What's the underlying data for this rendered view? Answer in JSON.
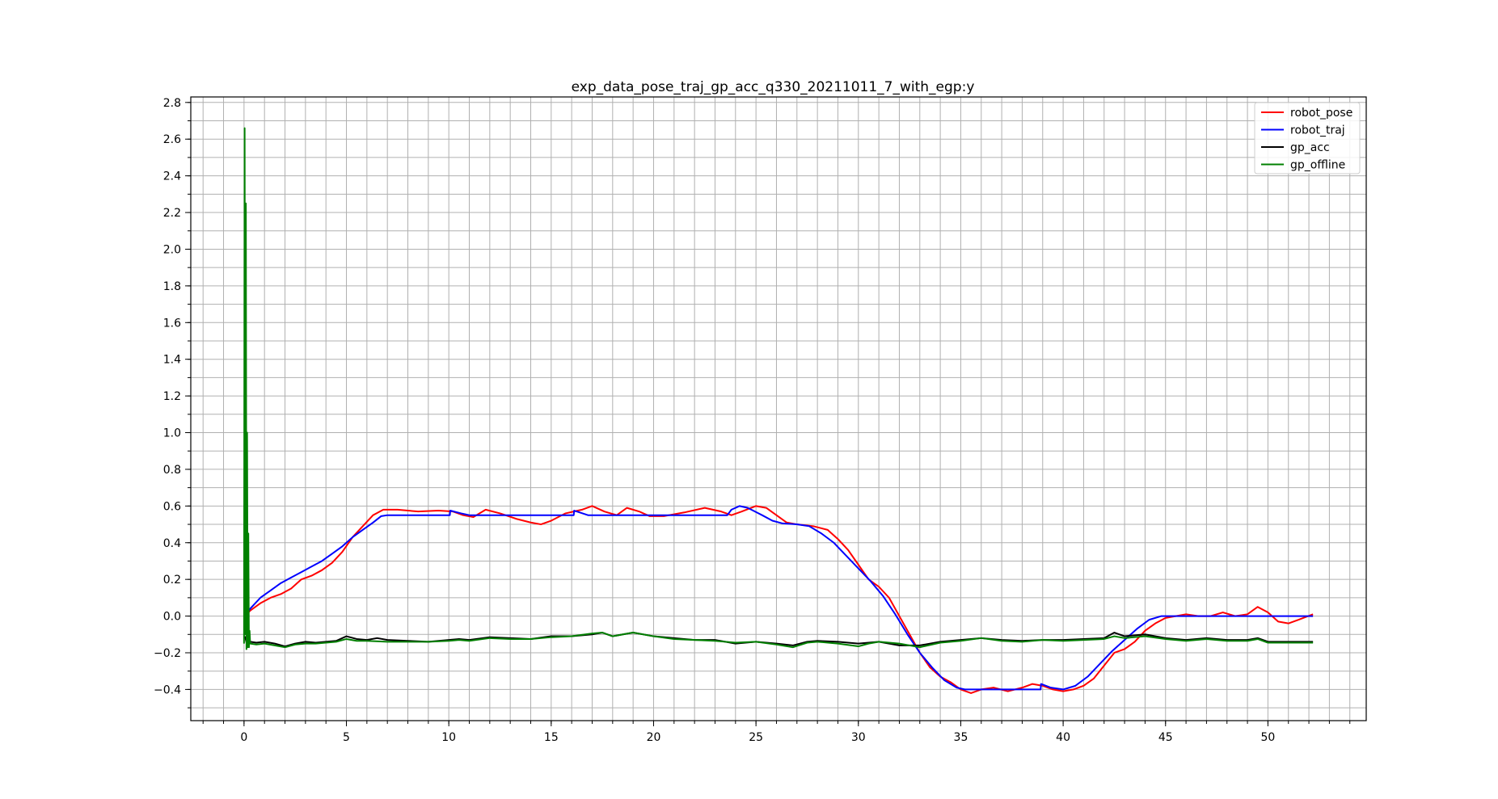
{
  "chart_data": {
    "type": "line",
    "title": "exp_data_pose_traj_gp_acc_q330_20211011_7_with_egp:y",
    "xlabel": "",
    "ylabel": "",
    "xlim": [
      -2.6,
      54.8
    ],
    "ylim": [
      -0.57,
      2.83
    ],
    "x_ticks": [
      0,
      5,
      10,
      15,
      20,
      25,
      30,
      35,
      40,
      45,
      50
    ],
    "x_tick_labels": [
      "0",
      "5",
      "10",
      "15",
      "20",
      "25",
      "30",
      "35",
      "40",
      "45",
      "50"
    ],
    "x_minor_step": 1,
    "y_ticks": [
      -0.4,
      -0.2,
      0.0,
      0.2,
      0.4,
      0.6,
      0.8,
      1.0,
      1.2,
      1.4,
      1.6,
      1.8,
      2.0,
      2.2,
      2.4,
      2.6,
      2.8
    ],
    "y_tick_labels": [
      "−0.4",
      "−0.2",
      "0.0",
      "0.2",
      "0.4",
      "0.6",
      "0.8",
      "1.0",
      "1.2",
      "1.4",
      "1.6",
      "1.8",
      "2.0",
      "2.2",
      "2.4",
      "2.6",
      "2.8"
    ],
    "y_minor_step": 0.1,
    "grid": true,
    "legend_position": "top-right",
    "series": [
      {
        "name": "robot_pose",
        "color": "#ff0000",
        "points": [
          [
            0.05,
            0.0
          ],
          [
            0.3,
            0.03
          ],
          [
            0.8,
            0.07
          ],
          [
            1.3,
            0.1
          ],
          [
            1.8,
            0.12
          ],
          [
            2.3,
            0.15
          ],
          [
            2.8,
            0.2
          ],
          [
            3.3,
            0.22
          ],
          [
            3.8,
            0.25
          ],
          [
            4.3,
            0.29
          ],
          [
            4.8,
            0.35
          ],
          [
            5.3,
            0.43
          ],
          [
            5.8,
            0.49
          ],
          [
            6.3,
            0.55
          ],
          [
            6.8,
            0.58
          ],
          [
            7.5,
            0.58
          ],
          [
            8.5,
            0.57
          ],
          [
            9.5,
            0.575
          ],
          [
            10.2,
            0.57
          ],
          [
            10.7,
            0.55
          ],
          [
            11.2,
            0.54
          ],
          [
            11.8,
            0.58
          ],
          [
            12.5,
            0.56
          ],
          [
            13.3,
            0.53
          ],
          [
            14.0,
            0.51
          ],
          [
            14.5,
            0.5
          ],
          [
            15.0,
            0.52
          ],
          [
            15.7,
            0.56
          ],
          [
            16.5,
            0.58
          ],
          [
            17.0,
            0.6
          ],
          [
            17.6,
            0.57
          ],
          [
            18.2,
            0.55
          ],
          [
            18.7,
            0.59
          ],
          [
            19.3,
            0.57
          ],
          [
            19.8,
            0.545
          ],
          [
            20.5,
            0.545
          ],
          [
            21.5,
            0.565
          ],
          [
            22.5,
            0.59
          ],
          [
            23.3,
            0.57
          ],
          [
            23.8,
            0.55
          ],
          [
            24.3,
            0.57
          ],
          [
            25.0,
            0.6
          ],
          [
            25.5,
            0.59
          ],
          [
            26.0,
            0.55
          ],
          [
            26.5,
            0.51
          ],
          [
            27.0,
            0.5
          ],
          [
            27.8,
            0.49
          ],
          [
            28.5,
            0.47
          ],
          [
            29.0,
            0.42
          ],
          [
            29.5,
            0.36
          ],
          [
            30.0,
            0.28
          ],
          [
            30.5,
            0.2
          ],
          [
            31.0,
            0.16
          ],
          [
            31.5,
            0.1
          ],
          [
            32.0,
            0.0
          ],
          [
            32.5,
            -0.1
          ],
          [
            33.0,
            -0.2
          ],
          [
            33.5,
            -0.28
          ],
          [
            34.0,
            -0.33
          ],
          [
            34.5,
            -0.36
          ],
          [
            35.0,
            -0.4
          ],
          [
            35.5,
            -0.42
          ],
          [
            36.0,
            -0.4
          ],
          [
            36.6,
            -0.39
          ],
          [
            37.3,
            -0.41
          ],
          [
            38.0,
            -0.39
          ],
          [
            38.5,
            -0.37
          ],
          [
            39.0,
            -0.38
          ],
          [
            39.5,
            -0.4
          ],
          [
            40.0,
            -0.41
          ],
          [
            40.5,
            -0.4
          ],
          [
            41.0,
            -0.38
          ],
          [
            41.5,
            -0.34
          ],
          [
            42.0,
            -0.27
          ],
          [
            42.5,
            -0.2
          ],
          [
            43.0,
            -0.18
          ],
          [
            43.5,
            -0.14
          ],
          [
            44.0,
            -0.08
          ],
          [
            44.5,
            -0.04
          ],
          [
            45.0,
            -0.01
          ],
          [
            45.5,
            0.0
          ],
          [
            46.0,
            0.01
          ],
          [
            46.6,
            0.0
          ],
          [
            47.2,
            0.0
          ],
          [
            47.8,
            0.02
          ],
          [
            48.4,
            0.0
          ],
          [
            49.0,
            0.01
          ],
          [
            49.5,
            0.05
          ],
          [
            50.0,
            0.02
          ],
          [
            50.5,
            -0.03
          ],
          [
            51.0,
            -0.04
          ],
          [
            51.5,
            -0.02
          ],
          [
            52.2,
            0.01
          ]
        ]
      },
      {
        "name": "robot_traj",
        "color": "#0000ff",
        "points": [
          [
            0.05,
            0.0
          ],
          [
            0.3,
            0.04
          ],
          [
            0.8,
            0.1
          ],
          [
            1.3,
            0.14
          ],
          [
            1.8,
            0.18
          ],
          [
            2.3,
            0.21
          ],
          [
            2.8,
            0.24
          ],
          [
            3.3,
            0.27
          ],
          [
            3.8,
            0.3
          ],
          [
            4.3,
            0.34
          ],
          [
            4.8,
            0.38
          ],
          [
            5.3,
            0.43
          ],
          [
            5.8,
            0.47
          ],
          [
            6.3,
            0.51
          ],
          [
            6.7,
            0.545
          ],
          [
            7.0,
            0.55
          ],
          [
            10.05,
            0.55
          ],
          [
            10.07,
            0.575
          ],
          [
            10.6,
            0.56
          ],
          [
            11.0,
            0.55
          ],
          [
            16.1,
            0.55
          ],
          [
            16.12,
            0.575
          ],
          [
            16.8,
            0.55
          ],
          [
            23.6,
            0.55
          ],
          [
            23.8,
            0.58
          ],
          [
            24.2,
            0.6
          ],
          [
            24.6,
            0.59
          ],
          [
            25.3,
            0.55
          ],
          [
            25.8,
            0.52
          ],
          [
            26.3,
            0.505
          ],
          [
            27.0,
            0.5
          ],
          [
            27.6,
            0.49
          ],
          [
            28.2,
            0.45
          ],
          [
            28.8,
            0.4
          ],
          [
            29.4,
            0.33
          ],
          [
            30.0,
            0.26
          ],
          [
            30.6,
            0.19
          ],
          [
            31.2,
            0.11
          ],
          [
            31.8,
            0.01
          ],
          [
            32.4,
            -0.1
          ],
          [
            33.0,
            -0.2
          ],
          [
            33.6,
            -0.28
          ],
          [
            34.2,
            -0.35
          ],
          [
            34.8,
            -0.39
          ],
          [
            35.2,
            -0.4
          ],
          [
            38.9,
            -0.4
          ],
          [
            38.92,
            -0.37
          ],
          [
            39.4,
            -0.39
          ],
          [
            40.0,
            -0.4
          ],
          [
            40.6,
            -0.38
          ],
          [
            41.2,
            -0.33
          ],
          [
            41.8,
            -0.26
          ],
          [
            42.4,
            -0.19
          ],
          [
            43.0,
            -0.13
          ],
          [
            43.6,
            -0.07
          ],
          [
            44.2,
            -0.02
          ],
          [
            44.8,
            0.0
          ],
          [
            45.2,
            0.0
          ],
          [
            52.2,
            0.0
          ]
        ]
      },
      {
        "name": "gp_acc",
        "color": "#000000",
        "points": [
          [
            0.05,
            -0.11
          ],
          [
            0.15,
            -0.16
          ],
          [
            0.3,
            -0.14
          ],
          [
            0.6,
            -0.145
          ],
          [
            1.0,
            -0.14
          ],
          [
            1.5,
            -0.15
          ],
          [
            2.0,
            -0.165
          ],
          [
            2.5,
            -0.15
          ],
          [
            3.0,
            -0.14
          ],
          [
            3.5,
            -0.145
          ],
          [
            4.0,
            -0.14
          ],
          [
            4.5,
            -0.135
          ],
          [
            5.0,
            -0.11
          ],
          [
            5.5,
            -0.125
          ],
          [
            6.0,
            -0.13
          ],
          [
            6.5,
            -0.12
          ],
          [
            7.0,
            -0.13
          ],
          [
            8.0,
            -0.135
          ],
          [
            9.0,
            -0.14
          ],
          [
            10.0,
            -0.13
          ],
          [
            10.5,
            -0.125
          ],
          [
            11.0,
            -0.13
          ],
          [
            12.0,
            -0.115
          ],
          [
            13.0,
            -0.12
          ],
          [
            14.0,
            -0.125
          ],
          [
            15.0,
            -0.11
          ],
          [
            16.0,
            -0.11
          ],
          [
            17.0,
            -0.1
          ],
          [
            17.5,
            -0.09
          ],
          [
            18.0,
            -0.11
          ],
          [
            18.5,
            -0.1
          ],
          [
            19.0,
            -0.09
          ],
          [
            20.0,
            -0.11
          ],
          [
            21.0,
            -0.12
          ],
          [
            22.0,
            -0.13
          ],
          [
            23.0,
            -0.13
          ],
          [
            24.0,
            -0.15
          ],
          [
            25.0,
            -0.14
          ],
          [
            26.0,
            -0.15
          ],
          [
            26.8,
            -0.16
          ],
          [
            27.5,
            -0.14
          ],
          [
            28.0,
            -0.135
          ],
          [
            29.0,
            -0.14
          ],
          [
            30.0,
            -0.15
          ],
          [
            30.5,
            -0.145
          ],
          [
            31.0,
            -0.14
          ],
          [
            32.0,
            -0.16
          ],
          [
            33.0,
            -0.16
          ],
          [
            34.0,
            -0.14
          ],
          [
            35.0,
            -0.13
          ],
          [
            36.0,
            -0.12
          ],
          [
            37.0,
            -0.13
          ],
          [
            38.0,
            -0.135
          ],
          [
            39.0,
            -0.13
          ],
          [
            40.0,
            -0.13
          ],
          [
            41.0,
            -0.125
          ],
          [
            42.0,
            -0.12
          ],
          [
            42.5,
            -0.09
          ],
          [
            43.0,
            -0.11
          ],
          [
            44.0,
            -0.1
          ],
          [
            45.0,
            -0.12
          ],
          [
            46.0,
            -0.13
          ],
          [
            47.0,
            -0.12
          ],
          [
            48.0,
            -0.13
          ],
          [
            49.0,
            -0.13
          ],
          [
            49.5,
            -0.12
          ],
          [
            50.0,
            -0.14
          ],
          [
            51.0,
            -0.14
          ],
          [
            52.2,
            -0.14
          ]
        ]
      },
      {
        "name": "gp_offline",
        "color": "#008000",
        "points": [
          [
            0.0,
            -0.15
          ],
          [
            0.03,
            2.66
          ],
          [
            0.06,
            -0.1
          ],
          [
            0.09,
            2.25
          ],
          [
            0.12,
            -0.18
          ],
          [
            0.15,
            1.0
          ],
          [
            0.18,
            -0.17
          ],
          [
            0.21,
            0.45
          ],
          [
            0.24,
            -0.17
          ],
          [
            0.27,
            -0.08
          ],
          [
            0.3,
            -0.15
          ],
          [
            0.6,
            -0.155
          ],
          [
            1.0,
            -0.15
          ],
          [
            1.5,
            -0.16
          ],
          [
            2.0,
            -0.17
          ],
          [
            2.5,
            -0.155
          ],
          [
            3.0,
            -0.15
          ],
          [
            3.5,
            -0.15
          ],
          [
            4.0,
            -0.145
          ],
          [
            4.5,
            -0.14
          ],
          [
            5.0,
            -0.125
          ],
          [
            5.5,
            -0.135
          ],
          [
            6.0,
            -0.135
          ],
          [
            7.0,
            -0.14
          ],
          [
            8.0,
            -0.14
          ],
          [
            9.0,
            -0.14
          ],
          [
            10.0,
            -0.135
          ],
          [
            10.5,
            -0.13
          ],
          [
            11.0,
            -0.135
          ],
          [
            12.0,
            -0.12
          ],
          [
            13.0,
            -0.125
          ],
          [
            14.0,
            -0.125
          ],
          [
            15.0,
            -0.115
          ],
          [
            16.0,
            -0.11
          ],
          [
            17.0,
            -0.095
          ],
          [
            17.5,
            -0.09
          ],
          [
            18.0,
            -0.11
          ],
          [
            18.5,
            -0.1
          ],
          [
            19.0,
            -0.09
          ],
          [
            20.0,
            -0.11
          ],
          [
            21.0,
            -0.125
          ],
          [
            22.0,
            -0.13
          ],
          [
            23.0,
            -0.135
          ],
          [
            24.0,
            -0.145
          ],
          [
            25.0,
            -0.14
          ],
          [
            26.0,
            -0.155
          ],
          [
            26.8,
            -0.17
          ],
          [
            27.5,
            -0.145
          ],
          [
            28.0,
            -0.14
          ],
          [
            29.0,
            -0.15
          ],
          [
            30.0,
            -0.165
          ],
          [
            30.5,
            -0.15
          ],
          [
            31.0,
            -0.14
          ],
          [
            32.0,
            -0.15
          ],
          [
            33.0,
            -0.17
          ],
          [
            34.0,
            -0.145
          ],
          [
            35.0,
            -0.135
          ],
          [
            36.0,
            -0.12
          ],
          [
            37.0,
            -0.135
          ],
          [
            38.0,
            -0.14
          ],
          [
            39.0,
            -0.13
          ],
          [
            40.0,
            -0.135
          ],
          [
            41.0,
            -0.13
          ],
          [
            42.0,
            -0.125
          ],
          [
            42.5,
            -0.11
          ],
          [
            43.0,
            -0.12
          ],
          [
            44.0,
            -0.11
          ],
          [
            45.0,
            -0.125
          ],
          [
            46.0,
            -0.135
          ],
          [
            47.0,
            -0.125
          ],
          [
            48.0,
            -0.135
          ],
          [
            49.0,
            -0.135
          ],
          [
            49.5,
            -0.125
          ],
          [
            50.0,
            -0.145
          ],
          [
            51.0,
            -0.145
          ],
          [
            52.2,
            -0.145
          ]
        ]
      }
    ]
  }
}
